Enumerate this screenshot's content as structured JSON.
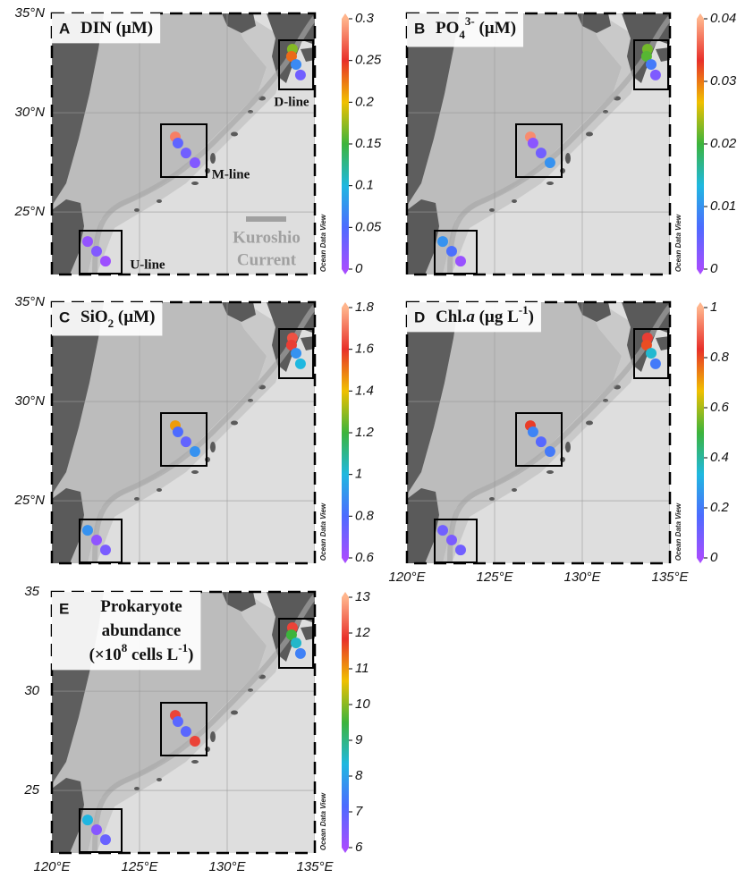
{
  "map": {
    "lonlim": [
      120,
      135
    ],
    "latlim": [
      21.85,
      35
    ]
  },
  "stations": {
    "lon": [
      133.72,
      133.67,
      133.93,
      134.18,
      127.04,
      127.19,
      127.65,
      128.16,
      122.04,
      122.55,
      123.06
    ],
    "lat": [
      33.2,
      32.84,
      32.43,
      31.9,
      28.78,
      28.47,
      27.97,
      27.48,
      23.51,
      23.02,
      22.52
    ]
  },
  "colormap": [
    "#a64dff",
    "#4d6bff",
    "#1fb8e0",
    "#3cb43c",
    "#f0c000",
    "#e8302a",
    "#ffb48c"
  ],
  "odv_label": "Ocean Data View",
  "line_labels": [
    "D-line",
    "M-line",
    "U-line"
  ],
  "current_label": [
    "Kuroshio",
    "Current"
  ],
  "panels": [
    {
      "letter": "A",
      "title": [
        [
          {
            "text": "DIN (µM)"
          }
        ]
      ],
      "clim": [
        0,
        0.3
      ],
      "cticks": [
        0,
        0.05,
        0.1,
        0.15,
        0.2,
        0.25,
        0.3
      ],
      "values": [
        0.17,
        0.23,
        0.07,
        0.03,
        0.28,
        0.04,
        0.03,
        0.02,
        0.01,
        0.02,
        0.005
      ],
      "lat_ticks": [
        {
          "value": 35,
          "label": "35°N"
        },
        {
          "value": 30,
          "label": "30°N"
        },
        {
          "value": 25,
          "label": "25°N"
        }
      ]
    },
    {
      "letter": "B",
      "title": [
        [
          {
            "text": "PO"
          },
          {
            "text": "4",
            "style": "sub"
          },
          {
            "text": "3-",
            "style": "sup"
          },
          {
            "text": " (µM)"
          }
        ]
      ],
      "clim": [
        0,
        0.04
      ],
      "cticks": [
        0,
        0.01,
        0.02,
        0.03,
        0.04
      ],
      "values": [
        0.022,
        0.021,
        0.008,
        0.003,
        0.038,
        0.002,
        0.004,
        0.01,
        0.01,
        0.007,
        0.001
      ]
    },
    {
      "letter": "C",
      "title": [
        [
          {
            "text": "SiO"
          },
          {
            "text": "2",
            "style": "sub"
          },
          {
            "text": " (µM)"
          }
        ]
      ],
      "clim": [
        0.6,
        1.8
      ],
      "cticks": [
        0.6,
        0.8,
        1,
        1.2,
        1.4,
        1.6,
        1.8
      ],
      "values": [
        1.65,
        1.62,
        0.9,
        1.0,
        1.45,
        0.8,
        0.75,
        0.9,
        0.9,
        0.65,
        0.7
      ],
      "lat_ticks": [
        {
          "value": 35,
          "label": "35°N"
        },
        {
          "value": 30,
          "label": "30°N"
        },
        {
          "value": 25,
          "label": "25°N"
        }
      ]
    },
    {
      "letter": "D",
      "title": [
        [
          {
            "text": "Chl."
          },
          {
            "text": "a",
            "style": "italic"
          },
          {
            "text": " (µg L"
          },
          {
            "text": "-1",
            "style": "sup"
          },
          {
            "text": ")"
          }
        ]
      ],
      "clim": [
        0,
        1
      ],
      "cticks": [
        0,
        0.2,
        0.4,
        0.6,
        0.8,
        1
      ],
      "values": [
        0.85,
        0.8,
        0.35,
        0.2,
        0.82,
        0.22,
        0.15,
        0.2,
        0.1,
        0.08,
        0.1
      ],
      "lon_ticks": [
        {
          "value": 120,
          "label": "120°E"
        },
        {
          "value": 125,
          "label": "125°E"
        },
        {
          "value": 130,
          "label": "130°E"
        },
        {
          "value": 135,
          "label": "135°E"
        }
      ]
    },
    {
      "letter": "E",
      "title": [
        [
          {
            "text": "Prokaryote"
          }
        ],
        [
          {
            "text": "abundance"
          }
        ],
        [
          {
            "text": "(×10"
          },
          {
            "text": "8",
            "style": "sup"
          },
          {
            "text": " cells L"
          },
          {
            "text": "-1",
            "style": "sup"
          },
          {
            "text": ")"
          }
        ]
      ],
      "clim": [
        6,
        13
      ],
      "cticks": [
        6,
        7,
        8,
        9,
        10,
        11,
        12,
        13
      ],
      "values": [
        12,
        9.5,
        8.5,
        7.5,
        12,
        7,
        7,
        12,
        8.3,
        6.4,
        6.8
      ],
      "lat_ticks": [
        35,
        30,
        25
      ],
      "lon_ticks": [
        {
          "value": 120,
          "label": "120°E"
        },
        {
          "value": 125,
          "label": "125°E"
        },
        {
          "value": 130,
          "label": "130°E"
        },
        {
          "value": 135,
          "label": "135°E"
        }
      ]
    }
  ]
}
